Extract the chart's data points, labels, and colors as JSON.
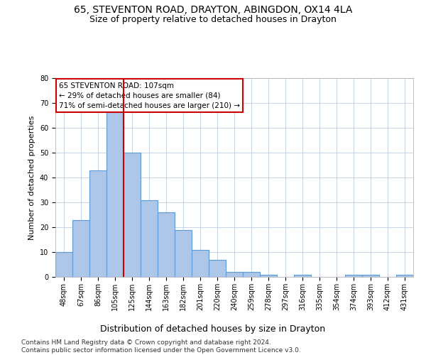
{
  "title_line1": "65, STEVENTON ROAD, DRAYTON, ABINGDON, OX14 4LA",
  "title_line2": "Size of property relative to detached houses in Drayton",
  "xlabel": "Distribution of detached houses by size in Drayton",
  "ylabel": "Number of detached properties",
  "bar_labels": [
    "48sqm",
    "67sqm",
    "86sqm",
    "105sqm",
    "125sqm",
    "144sqm",
    "163sqm",
    "182sqm",
    "201sqm",
    "220sqm",
    "240sqm",
    "259sqm",
    "278sqm",
    "297sqm",
    "316sqm",
    "335sqm",
    "354sqm",
    "374sqm",
    "393sqm",
    "412sqm",
    "431sqm"
  ],
  "bar_values": [
    10,
    23,
    43,
    67,
    50,
    31,
    26,
    19,
    11,
    7,
    2,
    2,
    1,
    0,
    1,
    0,
    0,
    1,
    1,
    0,
    1
  ],
  "bar_color": "#aec6e8",
  "bar_edge_color": "#5b9bd5",
  "vline_x": 3.5,
  "vline_color": "#cc0000",
  "annotation_text": "65 STEVENTON ROAD: 107sqm\n← 29% of detached houses are smaller (84)\n71% of semi-detached houses are larger (210) →",
  "annotation_box_color": "#cc0000",
  "ylim": [
    0,
    80
  ],
  "yticks": [
    0,
    10,
    20,
    30,
    40,
    50,
    60,
    70,
    80
  ],
  "footer_text": "Contains HM Land Registry data © Crown copyright and database right 2024.\nContains public sector information licensed under the Open Government Licence v3.0.",
  "bg_color": "#ffffff",
  "grid_color": "#c8d4e8",
  "title_fontsize": 10,
  "subtitle_fontsize": 9,
  "xlabel_fontsize": 9,
  "ylabel_fontsize": 8,
  "tick_fontsize": 7,
  "annotation_fontsize": 7.5,
  "footer_fontsize": 6.5
}
